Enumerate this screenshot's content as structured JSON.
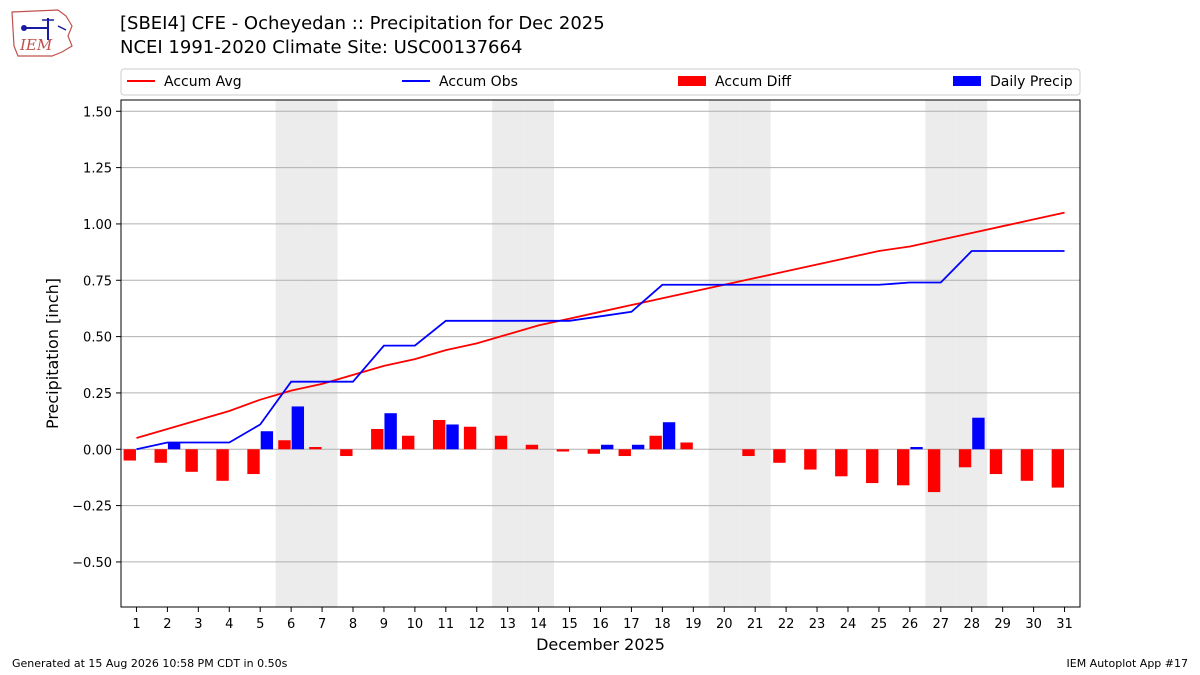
{
  "header": {
    "logo_text": "IEM",
    "title_line1": "[SBEI4] CFE - Ocheyedan :: Precipitation for Dec 2025",
    "title_line2": "NCEI 1991-2020 Climate Site: USC00137664"
  },
  "footer": {
    "generated": "Generated at 15 Aug 2026 10:58 PM CDT in 0.50s",
    "app": "IEM Autoplot App #17"
  },
  "colors": {
    "avg": "#ff0000",
    "obs": "#0000ff",
    "diff": "#ff0000",
    "daily": "#0000ff",
    "weekend_shade": "#ececec",
    "grid": "#b0b0b0"
  },
  "chart_data": {
    "type": "bar",
    "title": "[SBEI4] CFE - Ocheyedan :: Precipitation for Dec 2025",
    "subtitle": "NCEI 1991-2020 Climate Site: USC00137664",
    "xlabel": "December 2025",
    "ylabel": "Precipitation [inch]",
    "x": [
      1,
      2,
      3,
      4,
      5,
      6,
      7,
      8,
      9,
      10,
      11,
      12,
      13,
      14,
      15,
      16,
      17,
      18,
      19,
      20,
      21,
      22,
      23,
      24,
      25,
      26,
      27,
      28,
      29,
      30,
      31
    ],
    "xlim": [
      0.5,
      31.5
    ],
    "ylim": [
      -0.7,
      1.55
    ],
    "yticks": [
      "1.50",
      "1.25",
      "1.00",
      "0.75",
      "0.50",
      "0.25",
      "0.00",
      "−0.25",
      "−0.50"
    ],
    "ytick_values": [
      1.5,
      1.25,
      1.0,
      0.75,
      0.5,
      0.25,
      0.0,
      -0.25,
      -0.5
    ],
    "grid": "horizontal",
    "legend_position": "top",
    "shaded_days": [
      6,
      7,
      13,
      14,
      20,
      21,
      27,
      28
    ],
    "series": [
      {
        "name": "Accum Avg",
        "kind": "line",
        "values": [
          0.05,
          0.09,
          0.13,
          0.17,
          0.22,
          0.26,
          0.29,
          0.33,
          0.37,
          0.4,
          0.44,
          0.47,
          0.51,
          0.55,
          0.58,
          0.61,
          0.64,
          0.67,
          0.7,
          0.73,
          0.76,
          0.79,
          0.82,
          0.85,
          0.88,
          0.9,
          0.93,
          0.96,
          0.99,
          1.02,
          1.05
        ]
      },
      {
        "name": "Accum Obs",
        "kind": "line",
        "values": [
          0.0,
          0.03,
          0.03,
          0.03,
          0.11,
          0.3,
          0.3,
          0.3,
          0.46,
          0.46,
          0.57,
          0.57,
          0.57,
          0.57,
          0.57,
          0.59,
          0.61,
          0.73,
          0.73,
          0.73,
          0.73,
          0.73,
          0.73,
          0.73,
          0.73,
          0.74,
          0.74,
          0.88,
          0.88,
          0.88,
          0.88
        ]
      },
      {
        "name": "Accum Diff",
        "kind": "bar",
        "values": [
          -0.05,
          -0.06,
          -0.1,
          -0.14,
          -0.11,
          0.04,
          0.01,
          -0.03,
          0.09,
          0.06,
          0.13,
          0.1,
          0.06,
          0.02,
          -0.01,
          -0.02,
          -0.03,
          0.06,
          0.03,
          0.0,
          -0.03,
          -0.06,
          -0.09,
          -0.12,
          -0.15,
          -0.16,
          -0.19,
          -0.08,
          -0.11,
          -0.14,
          -0.17
        ]
      },
      {
        "name": "Daily Precip",
        "kind": "bar",
        "values": [
          0.0,
          0.03,
          0.0,
          0.0,
          0.08,
          0.19,
          0.0,
          0.0,
          0.16,
          0.0,
          0.11,
          0.0,
          0.0,
          0.0,
          0.0,
          0.02,
          0.02,
          0.12,
          0.0,
          0.0,
          0.0,
          0.0,
          0.0,
          0.0,
          0.0,
          0.01,
          0.0,
          0.14,
          0.0,
          0.0,
          0.0
        ]
      }
    ]
  }
}
